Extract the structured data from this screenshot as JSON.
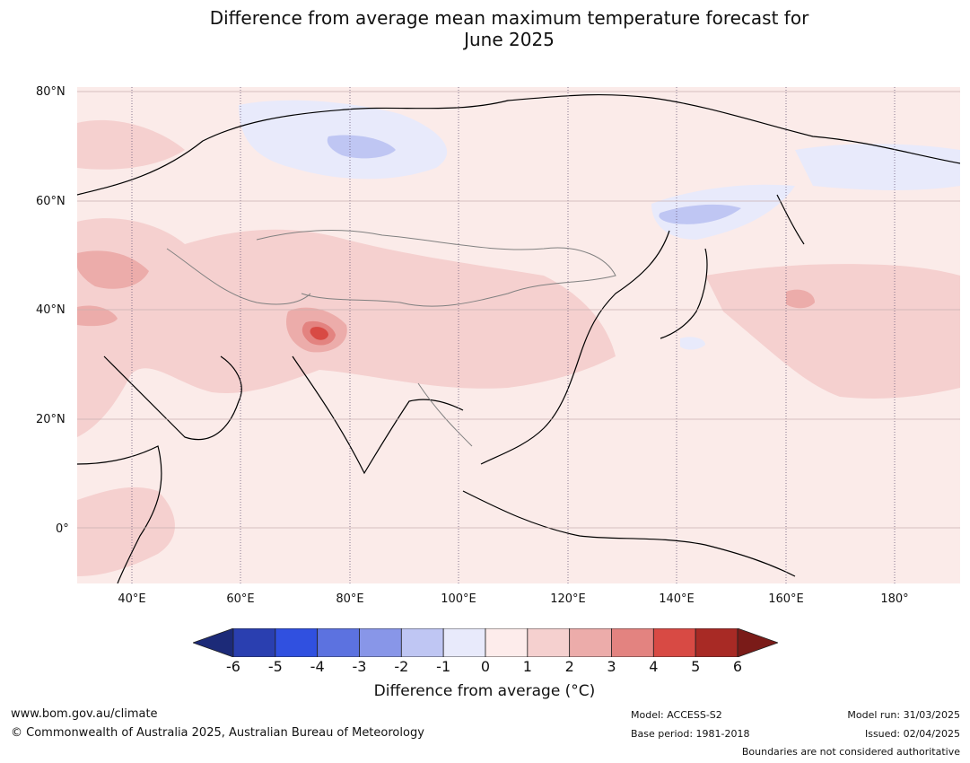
{
  "title_line1": "Difference from average mean maximum temperature forecast for",
  "title_line2": "June 2025",
  "map": {
    "latitude_labels": [
      "80°N",
      "60°N",
      "40°N",
      "20°N",
      "0°"
    ],
    "longitude_labels": [
      "40°E",
      "60°E",
      "80°E",
      "100°E",
      "120°E",
      "140°E",
      "160°E",
      "180°"
    ],
    "background_color": "#fbebe9",
    "coastline_color": "#000000",
    "border_color": "#808080"
  },
  "colorbar": {
    "ticks": [
      "-6",
      "-5",
      "-4",
      "-3",
      "-2",
      "-1",
      "0",
      "1",
      "2",
      "3",
      "4",
      "5",
      "6"
    ],
    "colors": [
      "#1c2a78",
      "#2a3fb0",
      "#3050e0",
      "#5c72e0",
      "#8896e8",
      "#bfc6f3",
      "#e8eafb",
      "#fdeceb",
      "#f5d0cf",
      "#ecacaa",
      "#e38380",
      "#d84a44",
      "#a82a25",
      "#7a1b18"
    ],
    "label": "Difference from average (°C)"
  },
  "footer": {
    "url": "www.bom.gov.au/climate",
    "copyright": "© Commonwealth of Australia 2025, Australian Bureau of Meteorology",
    "model": "Model: ACCESS-S2",
    "base_period": "Base period: 1981-2018",
    "model_run": "Model run: 31/03/2025",
    "issued": "Issued: 02/04/2025",
    "disclaimer": "Boundaries are not considered authoritative"
  }
}
